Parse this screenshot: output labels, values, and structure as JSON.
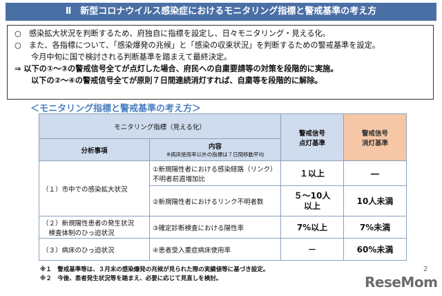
{
  "banner": {
    "title": "Ⅱ　新型コロナウイルス感染症におけるモニタリング指標と警戒基準の考え方"
  },
  "intro": {
    "lines": [
      "○　感染拡大状況を判断するため、府独自に指標を設定し、日々モニタリング・見える化。",
      "○　また、各指標について、「感染爆発の兆候」と「感染の収束状況」を判断するための警戒基準を設定。",
      "今月中旬に国で検討される判断基準を踏まえて最終決定。",
      "⇒ 以下の①～③の警戒信号全てが点灯した場合、府民への自粛要請等の対策を段階的に実施。",
      "以下の②～④の警戒信号全てが原則７日間連続消灯すれば、自粛等を段階的に解除。"
    ]
  },
  "subtitle": "＜モニタリング指標と警戒基準の考え方＞",
  "table": {
    "header_group": "モニタリング指標（見える化）",
    "col_analysis": "分析事項",
    "col_content": "内容",
    "col_content_note": "※病床使用率以外の指標は７日間移動平均",
    "col_on": "警戒信号\n点灯基準",
    "col_off": "警戒信号\n消灯基準",
    "groups": [
      {
        "analysis": "（１）市中での感染拡大状況",
        "rows": [
          {
            "content": "①新規陽性者における感染経路（リンク）不明者前週増加比",
            "on": "１以上",
            "off": "―"
          },
          {
            "content": "②新規陽性者におけるリンク不明者数",
            "on": "５～10人\n以上",
            "off": "10人未満"
          }
        ]
      },
      {
        "analysis": "（２）新規陽性患者の発生状況\n　検査体制のひっ迫状況",
        "rows": [
          {
            "content": "③確定診断検査における陽性率",
            "on": "7%以上",
            "off": "7%未満"
          }
        ]
      },
      {
        "analysis": "（３）病床のひっ迫状況",
        "rows": [
          {
            "content": "④患者受入重症病床使用率",
            "on": "－",
            "off": "60%未満"
          }
        ]
      }
    ]
  },
  "notes": [
    "※１　警戒基準等は、３月末の感染爆発の兆候が見られた際の実績値等に基づき設定。",
    "※２　今後、患者発生状況等を踏まえ、必要に応じて見直しを検討。"
  ],
  "page_number": "2",
  "logo": "ReseMom"
}
